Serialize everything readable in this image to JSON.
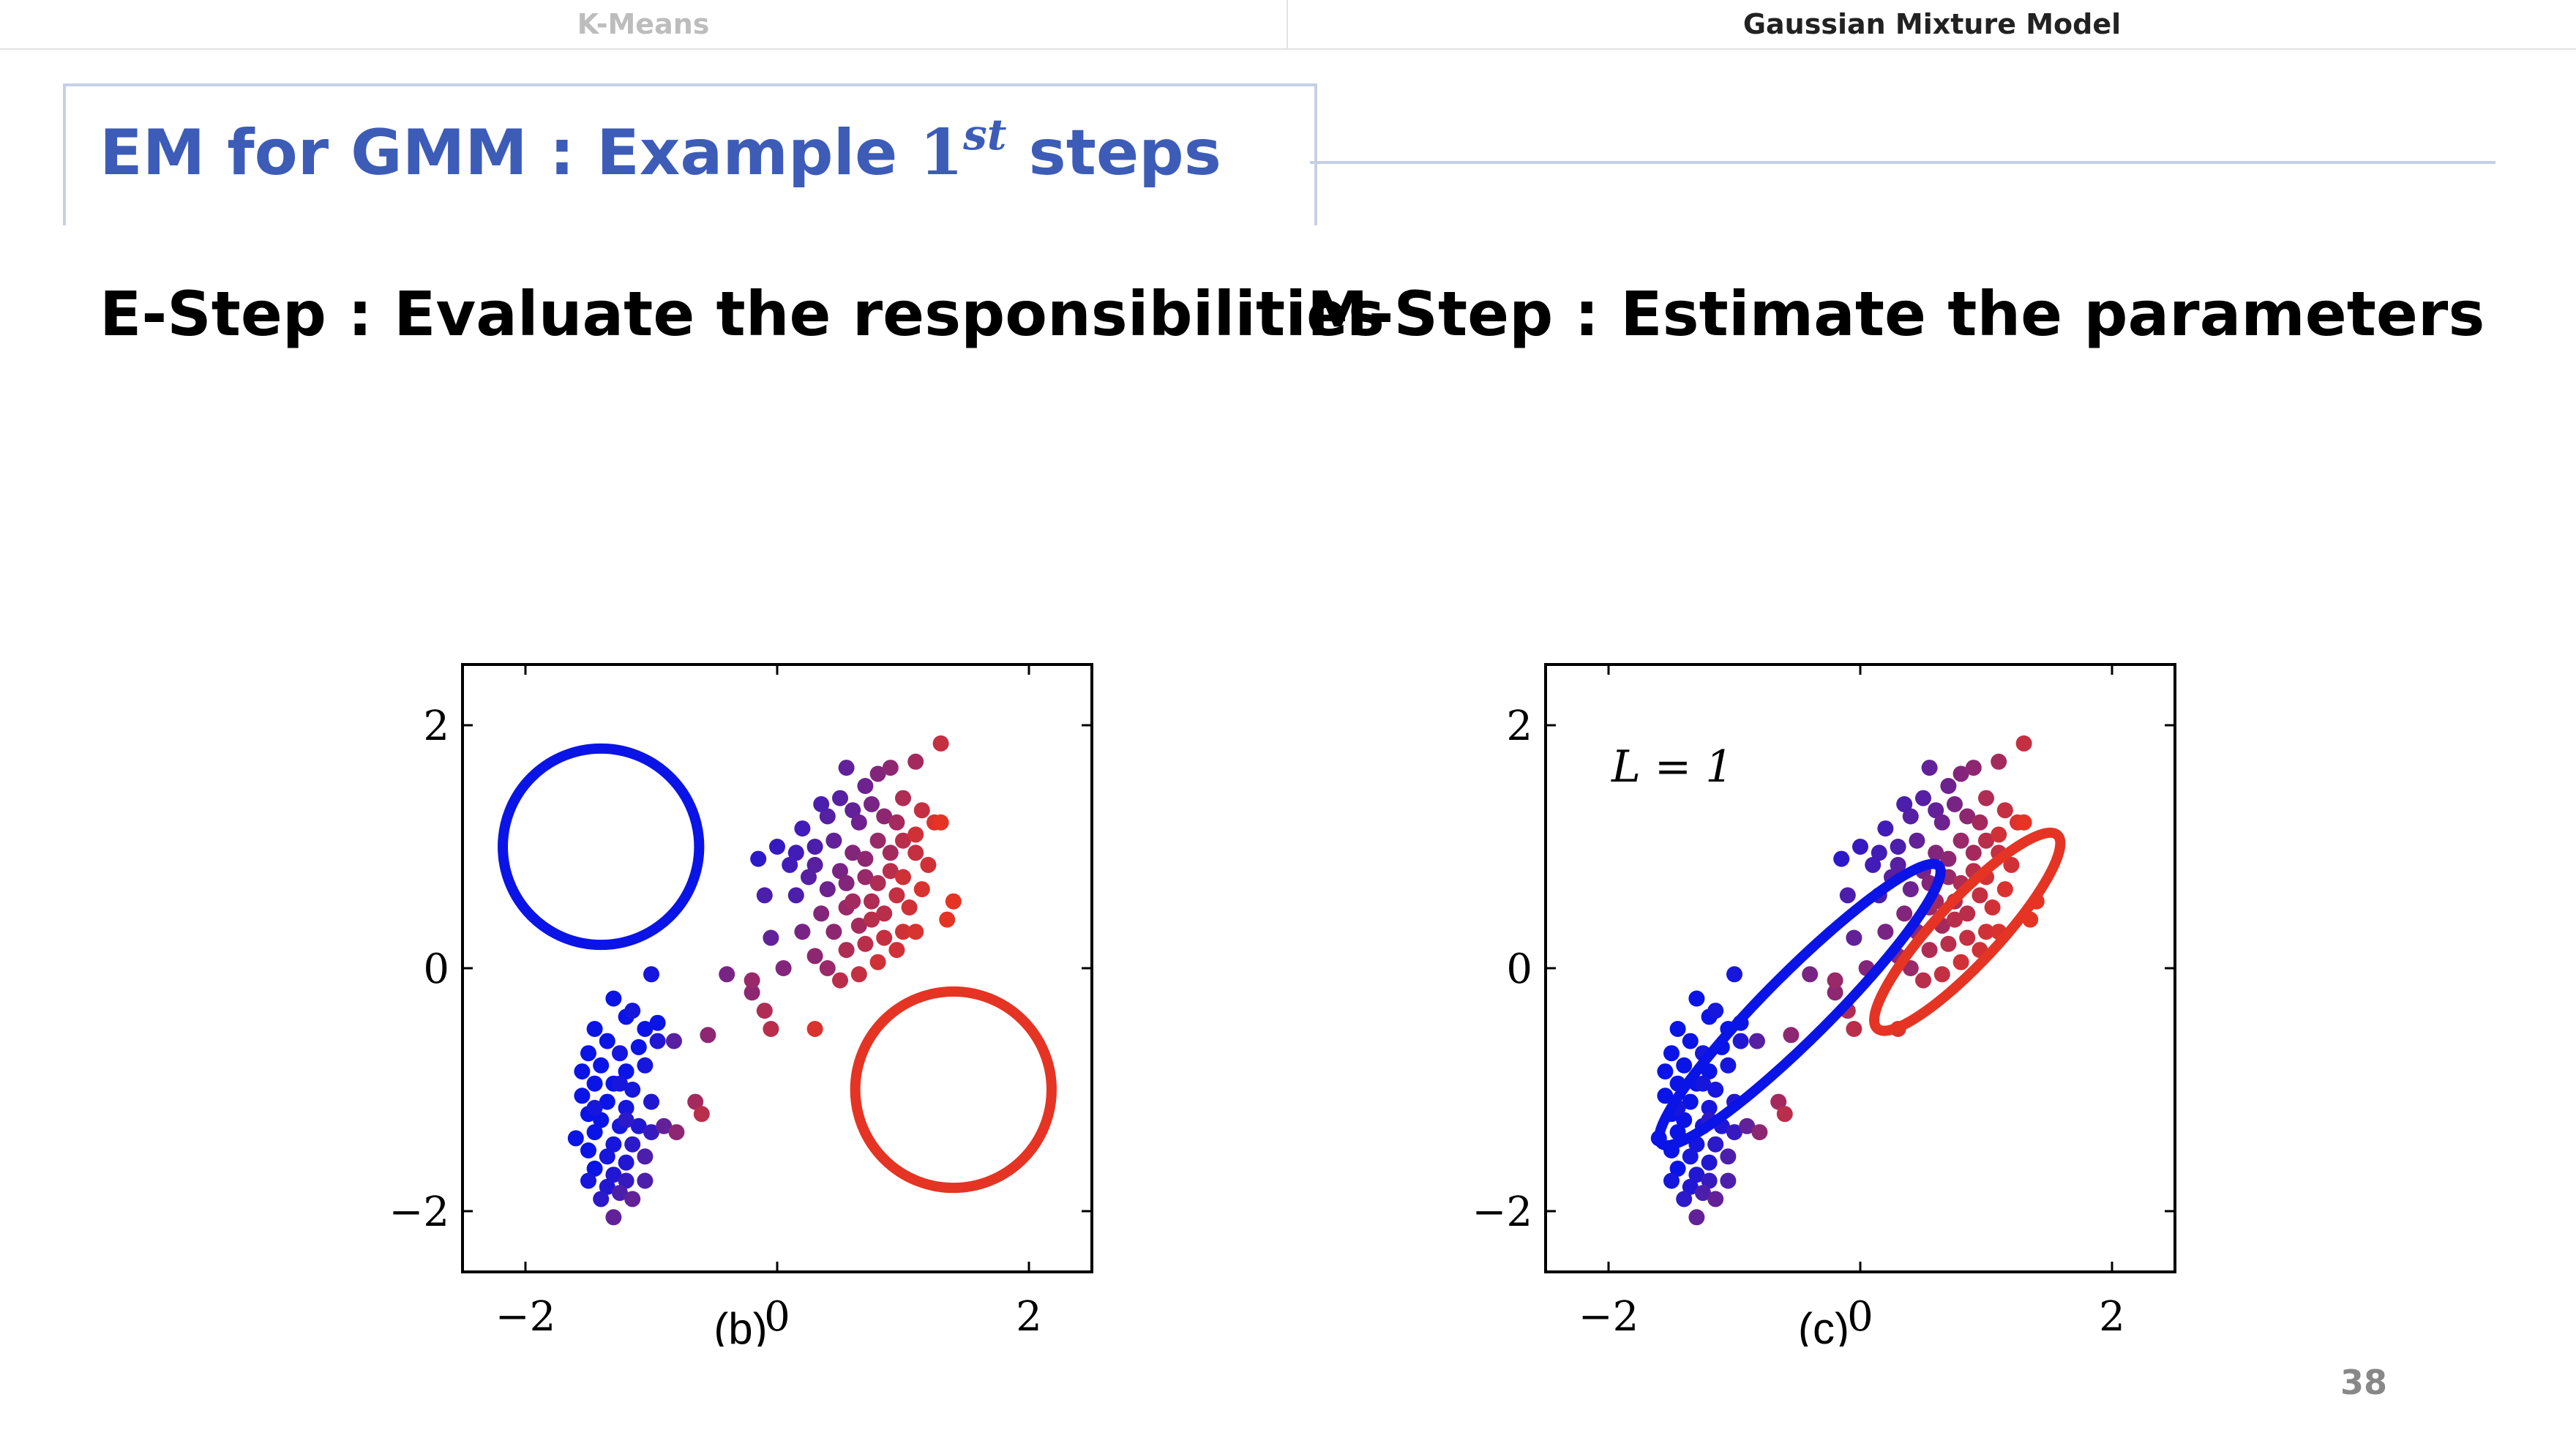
{
  "header": {
    "tab_left": "K-Means",
    "tab_right": "Gaussian Mixture Model"
  },
  "slide": {
    "title_main": "EM for GMM : Example ",
    "title_one": "1",
    "title_sup": "st",
    "title_end": " steps",
    "e_step": "E-Step : Evaluate the responsibilities",
    "m_step": "M-Step : Estimate the parameters",
    "page_number": "38"
  },
  "colors": {
    "blue": "#0b14e6",
    "red": "#e53424",
    "title": "#3d5cb8"
  },
  "chart_data": [
    {
      "type": "scatter",
      "panel_label": "(b)",
      "xlim": [
        -2.5,
        2.5
      ],
      "ylim": [
        -2.5,
        2.5
      ],
      "x_ticks": [
        {
          "v": -2,
          "label": "−2"
        },
        {
          "v": 0,
          "label": "0"
        },
        {
          "v": 2,
          "label": "2"
        }
      ],
      "y_ticks": [
        {
          "v": 2,
          "label": "2"
        },
        {
          "v": 0,
          "label": "0"
        },
        {
          "v": -2,
          "label": "−2"
        }
      ],
      "ellipses": [
        {
          "cx": -1.4,
          "cy": 1.0,
          "rx": 0.78,
          "ry": 0.78,
          "angle": 0,
          "color": "#0b14e6"
        },
        {
          "cx": 1.4,
          "cy": -1.0,
          "rx": 0.78,
          "ry": 0.78,
          "angle": 0,
          "color": "#e53424"
        }
      ],
      "annotation": ""
    },
    {
      "type": "scatter",
      "panel_label": "(c)",
      "xlim": [
        -2.5,
        2.5
      ],
      "ylim": [
        -2.5,
        2.5
      ],
      "x_ticks": [
        {
          "v": -2,
          "label": "−2"
        },
        {
          "v": 0,
          "label": "0"
        },
        {
          "v": 2,
          "label": "2"
        }
      ],
      "y_ticks": [
        {
          "v": 2,
          "label": "2"
        },
        {
          "v": 0,
          "label": "0"
        },
        {
          "v": -2,
          "label": "−2"
        }
      ],
      "ellipses": [
        {
          "cx": -0.48,
          "cy": -0.3,
          "rx": 1.56,
          "ry": 0.26,
          "angle": 45,
          "color": "#0b14e6"
        },
        {
          "cx": 0.85,
          "cy": 0.3,
          "rx": 1.05,
          "ry": 0.25,
          "angle": 47,
          "color": "#e53424"
        }
      ],
      "annotation": "L = 1"
    }
  ],
  "scatter_points": [
    [
      -1.45,
      -0.5,
      0
    ],
    [
      -1.35,
      -0.6,
      0
    ],
    [
      -1.2,
      -0.4,
      0
    ],
    [
      -1.05,
      -0.5,
      0
    ],
    [
      -1.5,
      -0.7,
      0
    ],
    [
      -1.25,
      -0.7,
      0.05
    ],
    [
      -1.1,
      -0.65,
      0
    ],
    [
      -0.95,
      -0.45,
      0
    ],
    [
      -1.3,
      -0.25,
      0
    ],
    [
      -1.55,
      -0.85,
      0
    ],
    [
      -1.4,
      -0.8,
      0
    ],
    [
      -1.2,
      -0.85,
      0
    ],
    [
      -1.05,
      -0.8,
      0.05
    ],
    [
      -1.45,
      -0.95,
      0
    ],
    [
      -1.3,
      -0.95,
      0
    ],
    [
      -1.15,
      -1.0,
      0.05
    ],
    [
      -1.55,
      -1.05,
      0
    ],
    [
      -1.35,
      -1.1,
      0
    ],
    [
      -1.2,
      -1.15,
      0.05
    ],
    [
      -1.0,
      -1.1,
      0.1
    ],
    [
      -1.5,
      -1.2,
      0
    ],
    [
      -1.4,
      -1.25,
      0
    ],
    [
      -1.25,
      -1.3,
      0.05
    ],
    [
      -1.1,
      -1.3,
      0.1
    ],
    [
      -1.6,
      -1.4,
      0
    ],
    [
      -1.45,
      -1.35,
      0
    ],
    [
      -1.3,
      -1.45,
      0.05
    ],
    [
      -1.15,
      -1.45,
      0.15
    ],
    [
      -1.0,
      -1.35,
      0.2
    ],
    [
      -1.5,
      -1.5,
      0
    ],
    [
      -1.35,
      -1.55,
      0.05
    ],
    [
      -1.2,
      -1.6,
      0.1
    ],
    [
      -1.45,
      -1.65,
      0
    ],
    [
      -1.3,
      -1.7,
      0.1
    ],
    [
      -1.5,
      -1.75,
      0.05
    ],
    [
      -1.35,
      -1.8,
      0.1
    ],
    [
      -1.2,
      -1.75,
      0.2
    ],
    [
      -1.05,
      -1.75,
      0.3
    ],
    [
      -1.4,
      -1.9,
      0.15
    ],
    [
      -1.25,
      -1.85,
      0.3
    ],
    [
      -1.15,
      -1.9,
      0.4
    ],
    [
      -1.3,
      -2.05,
      0.4
    ],
    [
      -1.05,
      -1.55,
      0.3
    ],
    [
      -0.9,
      -1.3,
      0.4
    ],
    [
      -0.8,
      -1.35,
      0.6
    ],
    [
      -0.65,
      -1.1,
      0.7
    ],
    [
      -0.6,
      -1.2,
      0.8
    ],
    [
      -0.95,
      -0.6,
      0.1
    ],
    [
      -0.82,
      -0.6,
      0.35
    ],
    [
      -1.25,
      -0.95,
      0.05
    ],
    [
      -1.45,
      -1.15,
      0.05
    ],
    [
      -1.2,
      -1.25,
      0.15
    ],
    [
      -1.0,
      -0.05,
      0.05
    ],
    [
      -1.15,
      -0.35,
      0.05
    ],
    [
      -0.4,
      -0.05,
      0.5
    ],
    [
      -0.2,
      -0.2,
      0.6
    ],
    [
      -0.1,
      -0.35,
      0.75
    ],
    [
      -0.05,
      -0.5,
      0.8
    ],
    [
      0.3,
      -0.5,
      0.95
    ],
    [
      -0.55,
      -0.55,
      0.6
    ],
    [
      -0.15,
      0.9,
      0.15
    ],
    [
      0.0,
      1.0,
      0.2
    ],
    [
      0.1,
      0.85,
      0.25
    ],
    [
      0.2,
      1.15,
      0.25
    ],
    [
      0.3,
      1.0,
      0.3
    ],
    [
      0.4,
      1.25,
      0.35
    ],
    [
      0.5,
      1.4,
      0.35
    ],
    [
      0.6,
      1.3,
      0.4
    ],
    [
      0.7,
      1.5,
      0.45
    ],
    [
      0.8,
      1.6,
      0.55
    ],
    [
      0.55,
      1.65,
      0.4
    ],
    [
      0.9,
      1.65,
      0.6
    ],
    [
      1.1,
      1.7,
      0.7
    ],
    [
      1.3,
      1.85,
      0.85
    ],
    [
      0.15,
      0.6,
      0.3
    ],
    [
      0.25,
      0.75,
      0.35
    ],
    [
      0.4,
      0.65,
      0.45
    ],
    [
      0.5,
      0.8,
      0.5
    ],
    [
      0.6,
      0.95,
      0.55
    ],
    [
      0.7,
      0.9,
      0.6
    ],
    [
      0.8,
      1.05,
      0.65
    ],
    [
      0.9,
      0.95,
      0.7
    ],
    [
      1.0,
      1.05,
      0.8
    ],
    [
      1.1,
      0.95,
      0.85
    ],
    [
      1.2,
      0.85,
      0.9
    ],
    [
      1.25,
      1.2,
      0.95
    ],
    [
      0.35,
      0.45,
      0.55
    ],
    [
      0.45,
      0.3,
      0.6
    ],
    [
      0.55,
      0.5,
      0.65
    ],
    [
      0.65,
      0.35,
      0.7
    ],
    [
      0.75,
      0.55,
      0.75
    ],
    [
      0.85,
      0.45,
      0.8
    ],
    [
      0.95,
      0.6,
      0.85
    ],
    [
      1.05,
      0.5,
      0.9
    ],
    [
      1.15,
      0.65,
      0.95
    ],
    [
      1.35,
      0.4,
      1.0
    ],
    [
      1.4,
      0.55,
      1.0
    ],
    [
      0.3,
      0.1,
      0.6
    ],
    [
      0.4,
      0.0,
      0.65
    ],
    [
      0.55,
      0.15,
      0.75
    ],
    [
      0.7,
      0.2,
      0.8
    ],
    [
      0.85,
      0.25,
      0.85
    ],
    [
      1.0,
      0.3,
      0.9
    ],
    [
      0.5,
      -0.1,
      0.8
    ],
    [
      0.65,
      -0.05,
      0.85
    ],
    [
      0.8,
      0.05,
      0.9
    ],
    [
      0.95,
      0.15,
      0.9
    ],
    [
      1.1,
      0.3,
      0.95
    ],
    [
      0.2,
      0.3,
      0.5
    ],
    [
      -0.05,
      0.25,
      0.4
    ],
    [
      -0.1,
      0.6,
      0.3
    ],
    [
      0.45,
      1.05,
      0.4
    ],
    [
      0.65,
      1.2,
      0.45
    ],
    [
      0.75,
      1.35,
      0.5
    ],
    [
      0.85,
      1.25,
      0.6
    ],
    [
      1.0,
      1.4,
      0.75
    ],
    [
      0.95,
      1.2,
      0.7
    ],
    [
      1.15,
      1.3,
      0.85
    ],
    [
      1.3,
      1.2,
      1.0
    ],
    [
      0.55,
      0.7,
      0.55
    ],
    [
      0.7,
      0.75,
      0.65
    ],
    [
      0.8,
      0.7,
      0.75
    ],
    [
      0.9,
      0.8,
      0.8
    ],
    [
      1.0,
      0.75,
      0.9
    ],
    [
      1.1,
      1.1,
      0.9
    ],
    [
      0.6,
      0.55,
      0.7
    ],
    [
      0.75,
      0.4,
      0.8
    ],
    [
      0.3,
      0.85,
      0.35
    ],
    [
      0.15,
      0.95,
      0.25
    ],
    [
      0.35,
      1.35,
      0.3
    ],
    [
      -0.2,
      -0.1,
      0.65
    ],
    [
      0.05,
      0.0,
      0.55
    ]
  ]
}
